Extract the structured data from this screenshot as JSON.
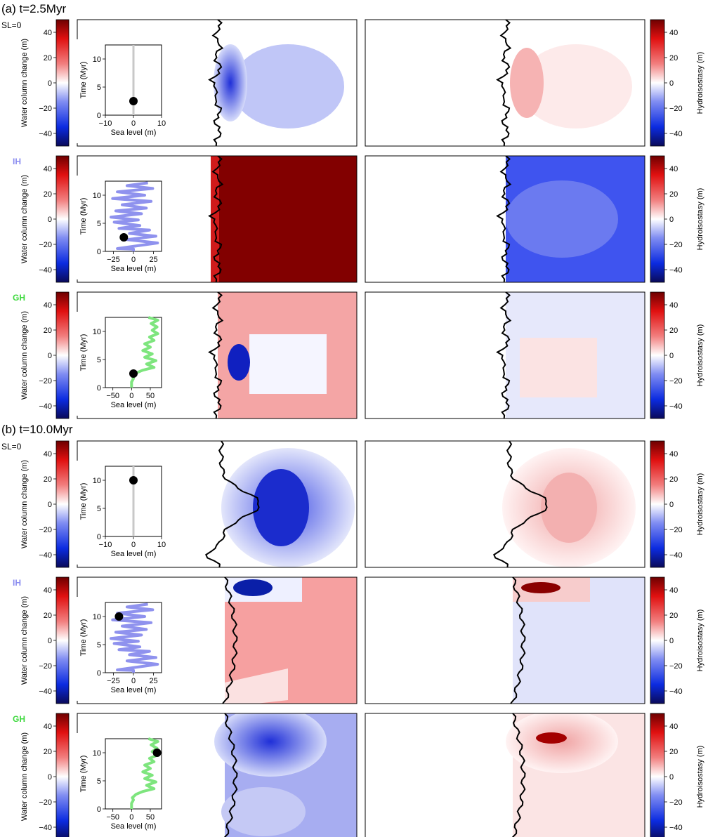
{
  "panels": [
    {
      "title": "(a) t=2.5Myr"
    },
    {
      "title": "(b) t=10.0Myr"
    }
  ],
  "colors": {
    "sl0_label": "#000000",
    "ih_label": "#8a8cf0",
    "gh_label": "#3fd93f",
    "ih_curve": "#8f92ee",
    "gh_curve": "#7ee57e",
    "sl0_curve": "#c8c8c8"
  },
  "chart_data": [
    {
      "type": "heatmap",
      "panel": "(a) t=2.5Myr",
      "scenario": "SL=0",
      "scenario_color": "#000000",
      "colorbar_left": {
        "label": "Water column change (m)",
        "ticks": [
          40,
          20,
          0,
          -20,
          -40
        ],
        "range": [
          -50,
          50
        ]
      },
      "colorbar_right": {
        "label": "Hydroisostasy (m)",
        "ticks": [
          40,
          20,
          0,
          -20,
          -40
        ],
        "range": [
          -50,
          50
        ]
      },
      "inset": {
        "type": "line",
        "xlabel": "Sea level (m)",
        "ylabel": "Time (Myr)",
        "xticks": [
          -10,
          0,
          10
        ],
        "yticks": [
          0,
          5,
          10
        ],
        "xlim": [
          -10,
          10
        ],
        "ylim": [
          0,
          12.5
        ],
        "marker": {
          "x": 0,
          "y": 2.5
        },
        "series": [
          {
            "values": [
              [
                0,
                0
              ],
              [
                0,
                12.5
              ]
            ]
          }
        ]
      }
    },
    {
      "type": "heatmap",
      "panel": "(a) t=2.5Myr",
      "scenario": "IH",
      "scenario_color": "#8a8cf0",
      "colorbar_left": {
        "label": "Water column change (m)",
        "ticks": [
          40,
          20,
          0,
          -20,
          -40
        ],
        "range": [
          -50,
          50
        ]
      },
      "colorbar_right": {
        "label": "Hydroisostasy (m)",
        "ticks": [
          40,
          20,
          0,
          -20,
          -40
        ],
        "range": [
          -50,
          50
        ]
      },
      "inset": {
        "type": "line",
        "xlabel": "Sea level (m)",
        "ylabel": "Time (Myr)",
        "xticks": [
          -25,
          0,
          25
        ],
        "yticks": [
          0,
          5,
          10
        ],
        "xlim": [
          -35,
          35
        ],
        "ylim": [
          0,
          12.5
        ],
        "marker": {
          "x": -12,
          "y": 2.5
        },
        "series": [
          {
            "values": [
              [
                0,
                0
              ],
              [
                0,
                0.4
              ],
              [
                -20,
                0.5
              ],
              [
                30,
                1.5
              ],
              [
                -8,
                2.1
              ],
              [
                28,
                2.7
              ],
              [
                -5,
                3.2
              ],
              [
                20,
                3.8
              ],
              [
                -18,
                4.1
              ],
              [
                8,
                4.6
              ],
              [
                -24,
                5.2
              ],
              [
                6,
                5.6
              ],
              [
                -28,
                6.1
              ],
              [
                10,
                6.7
              ],
              [
                -22,
                7.2
              ],
              [
                16,
                7.7
              ],
              [
                -14,
                8.3
              ],
              [
                22,
                8.9
              ],
              [
                -26,
                9.4
              ],
              [
                14,
                10
              ],
              [
                -20,
                10.6
              ],
              [
                24,
                11.2
              ],
              [
                -8,
                11.7
              ],
              [
                18,
                12.2
              ]
            ]
          }
        ]
      }
    },
    {
      "type": "heatmap",
      "panel": "(a) t=2.5Myr",
      "scenario": "GH",
      "scenario_color": "#3fd93f",
      "colorbar_left": {
        "label": "Water column change (m)",
        "ticks": [
          40,
          20,
          0,
          -20,
          -40
        ],
        "range": [
          -50,
          50
        ]
      },
      "colorbar_right": {
        "label": "Hydroisostasy (m)",
        "ticks": [
          40,
          20,
          0,
          -20,
          -40
        ],
        "range": [
          -50,
          50
        ]
      },
      "inset": {
        "type": "line",
        "xlabel": "Sea level (m)",
        "ylabel": "Time (Myr)",
        "xticks": [
          -50,
          0,
          50
        ],
        "yticks": [
          0,
          5,
          10
        ],
        "xlim": [
          -70,
          80
        ],
        "ylim": [
          0,
          12.5
        ],
        "marker": {
          "x": 5,
          "y": 2.5
        },
        "series": [
          {
            "values": [
              [
                0,
                0
              ],
              [
                0,
                1
              ],
              [
                5,
                1.6
              ],
              [
                2,
                2
              ],
              [
                12,
                2.6
              ],
              [
                30,
                3.1
              ],
              [
                60,
                3.6
              ],
              [
                40,
                4.2
              ],
              [
                65,
                4.8
              ],
              [
                35,
                5.4
              ],
              [
                55,
                6
              ],
              [
                30,
                6.6
              ],
              [
                50,
                7.2
              ],
              [
                35,
                7.8
              ],
              [
                60,
                8.4
              ],
              [
                48,
                9
              ],
              [
                70,
                9.6
              ],
              [
                55,
                10.2
              ],
              [
                68,
                10.8
              ],
              [
                52,
                11.4
              ],
              [
                70,
                12
              ],
              [
                45,
                12.5
              ]
            ]
          }
        ]
      }
    },
    {
      "type": "heatmap",
      "panel": "(b) t=10.0Myr",
      "scenario": "SL=0",
      "scenario_color": "#000000",
      "colorbar_left": {
        "label": "Water column change (m)",
        "ticks": [
          40,
          20,
          0,
          -20,
          -40
        ],
        "range": [
          -50,
          50
        ]
      },
      "colorbar_right": {
        "label": "Hydroisostasy (m)",
        "ticks": [
          40,
          20,
          0,
          -20,
          -40
        ],
        "range": [
          -50,
          50
        ]
      },
      "inset": {
        "type": "line",
        "xlabel": "Sea level (m)",
        "ylabel": "Time (Myr)",
        "xticks": [
          -10,
          0,
          10
        ],
        "yticks": [
          0,
          5,
          10
        ],
        "xlim": [
          -10,
          10
        ],
        "ylim": [
          0,
          12.5
        ],
        "marker": {
          "x": 0,
          "y": 10
        },
        "series": [
          {
            "values": [
              [
                0,
                0
              ],
              [
                0,
                12.5
              ]
            ]
          }
        ]
      }
    },
    {
      "type": "heatmap",
      "panel": "(b) t=10.0Myr",
      "scenario": "IH",
      "scenario_color": "#8a8cf0",
      "colorbar_left": {
        "label": "Water column change (m)",
        "ticks": [
          40,
          20,
          0,
          -20,
          -40
        ],
        "range": [
          -50,
          50
        ]
      },
      "colorbar_right": {
        "label": "Hydroisostasy (m)",
        "ticks": [
          40,
          20,
          0,
          -20,
          -40
        ],
        "range": [
          -50,
          50
        ]
      },
      "inset": {
        "type": "line",
        "xlabel": "Sea level (m)",
        "ylabel": "Time (Myr)",
        "xticks": [
          -25,
          0,
          25
        ],
        "yticks": [
          0,
          5,
          10
        ],
        "xlim": [
          -35,
          35
        ],
        "ylim": [
          0,
          12.5
        ],
        "marker": {
          "x": -18,
          "y": 10
        },
        "series": [
          {
            "values": [
              [
                0,
                0
              ],
              [
                0,
                0.4
              ],
              [
                -20,
                0.5
              ],
              [
                30,
                1.5
              ],
              [
                -8,
                2.1
              ],
              [
                28,
                2.7
              ],
              [
                -5,
                3.2
              ],
              [
                20,
                3.8
              ],
              [
                -18,
                4.1
              ],
              [
                8,
                4.6
              ],
              [
                -24,
                5.2
              ],
              [
                6,
                5.6
              ],
              [
                -28,
                6.1
              ],
              [
                10,
                6.7
              ],
              [
                -22,
                7.2
              ],
              [
                16,
                7.7
              ],
              [
                -14,
                8.3
              ],
              [
                22,
                8.9
              ],
              [
                -26,
                9.4
              ],
              [
                14,
                10
              ],
              [
                -20,
                10.6
              ],
              [
                24,
                11.2
              ],
              [
                -8,
                11.7
              ],
              [
                18,
                12.2
              ]
            ]
          }
        ]
      }
    },
    {
      "type": "heatmap",
      "panel": "(b) t=10.0Myr",
      "scenario": "GH",
      "scenario_color": "#3fd93f",
      "colorbar_left": {
        "label": "Water column change (m)",
        "ticks": [
          40,
          20,
          0,
          -20,
          -40
        ],
        "range": [
          -50,
          50
        ]
      },
      "colorbar_right": {
        "label": "Hydroisostasy (m)",
        "ticks": [
          40,
          20,
          0,
          -20,
          -40
        ],
        "range": [
          -50,
          50
        ]
      },
      "inset": {
        "type": "line",
        "xlabel": "Sea level (m)",
        "ylabel": "Time (Myr)",
        "xticks": [
          -50,
          0,
          50
        ],
        "yticks": [
          0,
          5,
          10
        ],
        "xlim": [
          -70,
          80
        ],
        "ylim": [
          0,
          12.5
        ],
        "marker": {
          "x": 68,
          "y": 10
        },
        "series": [
          {
            "values": [
              [
                0,
                0
              ],
              [
                0,
                1
              ],
              [
                5,
                1.6
              ],
              [
                2,
                2
              ],
              [
                12,
                2.6
              ],
              [
                30,
                3.1
              ],
              [
                60,
                3.6
              ],
              [
                40,
                4.2
              ],
              [
                65,
                4.8
              ],
              [
                35,
                5.4
              ],
              [
                55,
                6
              ],
              [
                30,
                6.6
              ],
              [
                50,
                7.2
              ],
              [
                35,
                7.8
              ],
              [
                60,
                8.4
              ],
              [
                48,
                9
              ],
              [
                70,
                9.6
              ],
              [
                55,
                10.2
              ],
              [
                68,
                10.8
              ],
              [
                52,
                11.4
              ],
              [
                70,
                12
              ],
              [
                45,
                12.5
              ]
            ]
          }
        ]
      }
    }
  ]
}
